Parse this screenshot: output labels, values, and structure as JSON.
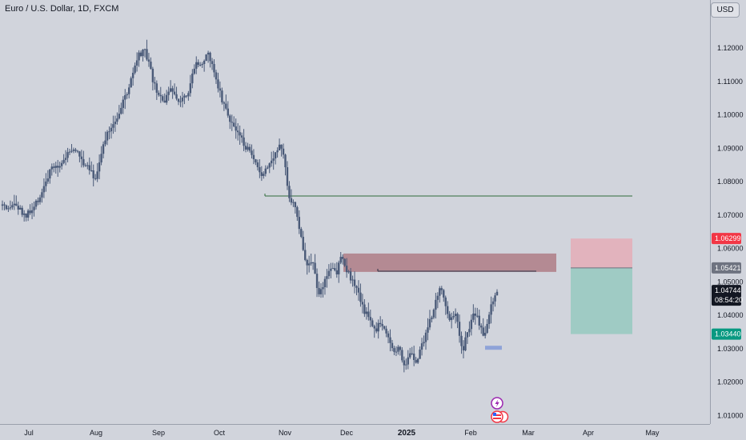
{
  "header": {
    "title": "Euro / U.S. Dollar, 1D, FXCM",
    "currency_button": "USD"
  },
  "colors": {
    "background": "#d1d4dc",
    "candle": "#4a5a78",
    "support_line": "#2e6b3a",
    "supply_zone": "#b48a93",
    "stop_zone": "#e2b3bd",
    "target_zone": "#9fcbc4",
    "stop_badge": "#f23645",
    "target_badge": "#089981",
    "price_badge": "#131722",
    "entry_badge": "#6e7380",
    "marker": "#8fa3d8"
  },
  "price_labels": {
    "stop": "1.06299",
    "entry": "1.05421",
    "current": "1.04744",
    "countdown": "08:54:20",
    "target": "1.03440"
  },
  "chart_data": {
    "type": "candlestick",
    "title": "Euro / U.S. Dollar, 1D, FXCM",
    "x_ticks": [
      "Jul",
      "Aug",
      "Sep",
      "Oct",
      "Nov",
      "Dec",
      "2025",
      "Feb",
      "Mar",
      "Apr",
      "May"
    ],
    "bold_x_tick": "2025",
    "y_ticks": [
      "1.12000",
      "1.11000",
      "1.10000",
      "1.09000",
      "1.08000",
      "1.07000",
      "1.06000",
      "1.05000",
      "1.04000",
      "1.03000",
      "1.02000",
      "1.01000"
    ],
    "ylim": [
      1.0065,
      1.1265
    ],
    "grid": false,
    "close_path": [
      [
        1.0728,
        0
      ],
      [
        1.0705,
        0.03
      ],
      [
        1.0735,
        0.07
      ],
      [
        1.0715,
        0.11
      ],
      [
        1.0695,
        0.14
      ],
      [
        1.0712,
        0.19
      ],
      [
        1.076,
        0.24
      ],
      [
        1.083,
        0.3
      ],
      [
        1.0855,
        0.37
      ],
      [
        1.0895,
        0.43
      ],
      [
        1.089,
        0.47
      ],
      [
        1.086,
        0.51
      ],
      [
        1.084,
        0.56
      ],
      [
        1.08,
        0.59
      ],
      [
        1.0885,
        0.62
      ],
      [
        1.095,
        0.67
      ],
      [
        1.101,
        0.74
      ],
      [
        1.107,
        0.79
      ],
      [
        1.1175,
        0.86
      ],
      [
        1.119,
        0.9
      ],
      [
        1.114,
        0.93
      ],
      [
        1.107,
        0.97
      ],
      [
        1.104,
        1.02
      ],
      [
        1.1075,
        1.07
      ],
      [
        1.1045,
        1.12
      ],
      [
        1.1075,
        1.18
      ],
      [
        1.1165,
        1.22
      ],
      [
        1.115,
        1.26
      ],
      [
        1.118,
        1.3
      ],
      [
        1.113,
        1.34
      ],
      [
        1.104,
        1.39
      ],
      [
        1.0985,
        1.44
      ],
      [
        1.095,
        1.48
      ],
      [
        1.091,
        1.53
      ],
      [
        1.087,
        1.58
      ],
      [
        1.0815,
        1.63
      ],
      [
        1.0855,
        1.68
      ],
      [
        1.089,
        1.73
      ],
      [
        1.091,
        1.76
      ],
      [
        1.0835,
        1.79
      ],
      [
        1.076,
        1.81
      ],
      [
        1.072,
        1.85
      ],
      [
        1.062,
        1.89
      ],
      [
        1.054,
        1.93
      ],
      [
        1.056,
        1.96
      ],
      [
        1.046,
        2.0
      ],
      [
        1.051,
        2.04
      ],
      [
        1.055,
        2.08
      ],
      [
        1.052,
        2.11
      ],
      [
        1.059,
        2.14
      ],
      [
        1.0545,
        2.17
      ],
      [
        1.05,
        2.21
      ],
      [
        1.046,
        2.25
      ],
      [
        1.042,
        2.28
      ],
      [
        1.039,
        2.32
      ],
      [
        1.036,
        2.36
      ],
      [
        1.0385,
        2.39
      ],
      [
        1.034,
        2.43
      ],
      [
        1.029,
        2.47
      ],
      [
        1.031,
        2.5
      ],
      [
        1.024,
        2.54
      ],
      [
        1.03,
        2.58
      ],
      [
        1.025,
        2.61
      ],
      [
        1.031,
        2.65
      ],
      [
        1.037,
        2.69
      ],
      [
        1.0405,
        2.72
      ],
      [
        1.049,
        2.76
      ],
      [
        1.0445,
        2.79
      ],
      [
        1.039,
        2.82
      ],
      [
        1.0415,
        2.86
      ],
      [
        1.036,
        2.88
      ],
      [
        1.0295,
        2.91
      ],
      [
        1.034,
        2.93
      ],
      [
        1.038,
        2.96
      ],
      [
        1.0415,
        2.98
      ],
      [
        1.0382,
        3.01
      ],
      [
        1.033,
        3.04
      ],
      [
        1.039,
        3.07
      ],
      [
        1.045,
        3.1
      ],
      [
        1.0474,
        3.13
      ]
    ],
    "support_level": 1.0757,
    "resistance_level": 1.0532,
    "supply_zone": [
      1.053,
      1.0585
    ],
    "position": {
      "stop": 1.06299,
      "entry": 1.05421,
      "target": 1.0344
    },
    "marker_level": 1.0303,
    "current_price": 1.04744
  }
}
